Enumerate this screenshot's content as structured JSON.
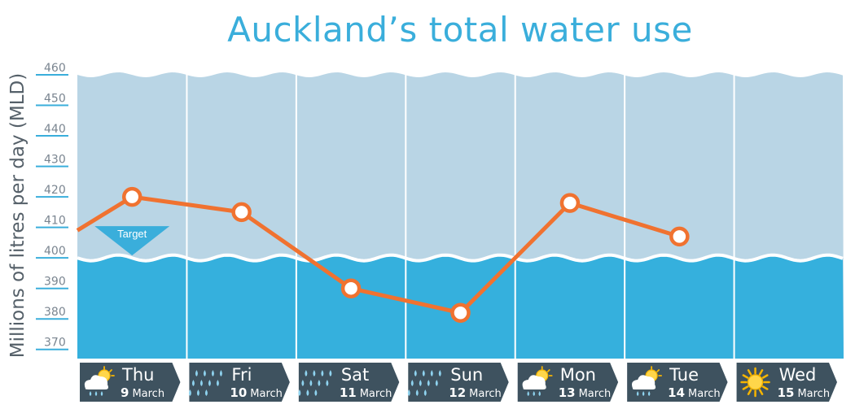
{
  "chart_data": {
    "type": "line",
    "title": "Auckland’s total water use",
    "ylabel": "Millions of litres per day (MLD)",
    "ylim": [
      367,
      460
    ],
    "yticks": [
      370,
      380,
      390,
      400,
      410,
      420,
      430,
      440,
      450,
      460
    ],
    "target": {
      "label": "Target",
      "value": 400
    },
    "days": [
      {
        "day": "Thu",
        "date": "9",
        "month": "March",
        "weather": "cloud-sun-rain-icon"
      },
      {
        "day": "Fri",
        "date": "10",
        "month": "March",
        "weather": "rain-icon"
      },
      {
        "day": "Sat",
        "date": "11",
        "month": "March",
        "weather": "rain-icon"
      },
      {
        "day": "Sun",
        "date": "12",
        "month": "March",
        "weather": "rain-icon"
      },
      {
        "day": "Mon",
        "date": "13",
        "month": "March",
        "weather": "cloud-sun-rain-icon"
      },
      {
        "day": "Tue",
        "date": "14",
        "month": "March",
        "weather": "cloud-sun-rain-icon"
      },
      {
        "day": "Wed",
        "date": "15",
        "month": "March",
        "weather": "sun-icon"
      }
    ],
    "series": [
      {
        "values": [
          420,
          415,
          390,
          382,
          418,
          407,
          null
        ],
        "lead_in_value": 409
      }
    ],
    "colors": {
      "upper_band": "#b9d5e5",
      "lower_band": "#35b0dd",
      "line": "#f07230",
      "ticks": "#3aaedb",
      "day_box": "#3e525f",
      "title": "#3aaedb"
    }
  }
}
